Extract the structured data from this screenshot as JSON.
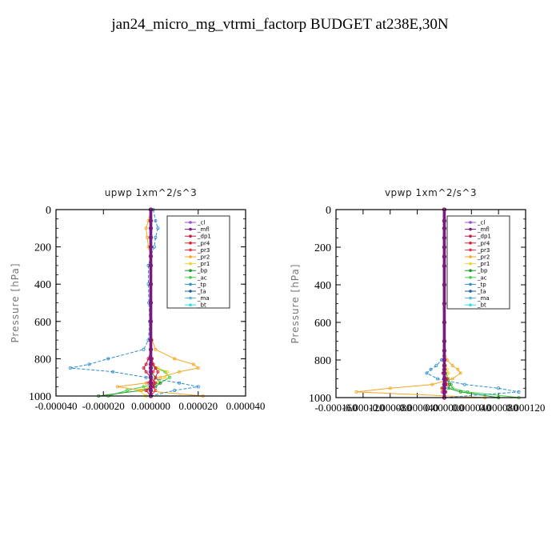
{
  "title": "jan24_micro_mg_vtrmi_factorp  BUDGET at238E,30N",
  "y_axis_label": "Pressure [hPa]",
  "legend_entries": [
    "_cl",
    "_mfl",
    "_dp1",
    "_pr4",
    "_pr3",
    "_pr2",
    "_pr1",
    "_bp",
    "_ac",
    "_tp",
    "_ta",
    "_ma",
    "_bt"
  ],
  "colors": {
    "_cl": "#a64ad6",
    "_mfl": "#7a1a7a",
    "_dp1": "#c8163c",
    "_pr4": "#d81e2e",
    "_pr3": "#ee3344",
    "_pr2": "#f5a623",
    "_pr1": "#f2d22e",
    "_bp": "#1a9a2a",
    "_ac": "#3ecf3e",
    "_tp": "#2a8fd0",
    "_ta": "#1a5aa8",
    "_ma": "#5ab5d8",
    "_bt": "#33dddd"
  },
  "chart_data": [
    {
      "type": "line",
      "title": "upwp   1xm^2/s^3",
      "ylabel": "Pressure [hPa]",
      "ylim": [
        1000,
        0
      ],
      "xlim": [
        -4e-05,
        4e-05
      ],
      "x_tick_labels": [
        "-0.000040",
        "-0.000020",
        "0.000000",
        "0.000020",
        "0.000040"
      ],
      "x_tick_values": [
        -4e-05,
        -2e-05,
        0,
        2e-05,
        4e-05
      ],
      "y_ticks": [
        0,
        200,
        400,
        600,
        800,
        1000
      ],
      "pressure_levels": [
        0,
        60,
        100,
        150,
        200,
        250,
        300,
        400,
        500,
        600,
        700,
        750,
        800,
        830,
        850,
        870,
        900,
        930,
        950,
        970,
        1000
      ],
      "series": [
        {
          "name": "_cl",
          "values": [
            0,
            0,
            0,
            0,
            0,
            0,
            0,
            0,
            0,
            0,
            0,
            0,
            0,
            0,
            0,
            0,
            0,
            0,
            0,
            0,
            0
          ]
        },
        {
          "name": "_mfl",
          "values": [
            0,
            0,
            0,
            0,
            0,
            0,
            0,
            0,
            0,
            0,
            0,
            0,
            0,
            0,
            0,
            0,
            0,
            0,
            0,
            0,
            0
          ]
        },
        {
          "name": "_dp1",
          "values": [
            0,
            0,
            0,
            0,
            0,
            0,
            0,
            0,
            0,
            0,
            0,
            2e-07,
            -1e-06,
            -2e-06,
            -3e-06,
            -2e-06,
            0,
            2e-06,
            1e-06,
            -2e-06,
            0
          ]
        },
        {
          "name": "_pr4",
          "values": [
            0,
            0,
            0,
            0,
            0,
            0,
            0,
            0,
            0,
            0,
            0,
            0,
            5e-07,
            1e-06,
            2e-06,
            3e-06,
            2e-06,
            1e-06,
            1e-06,
            0,
            0
          ]
        },
        {
          "name": "_pr3",
          "values": [
            0,
            0,
            0,
            0,
            0,
            0,
            0,
            0,
            0,
            0,
            0,
            0,
            5e-07,
            1e-06,
            2e-06,
            1e-06,
            0,
            -1e-06,
            1e-06,
            2e-06,
            0
          ]
        },
        {
          "name": "_pr2",
          "values": [
            0,
            -1e-06,
            -2e-06,
            -1.5e-06,
            -1e-06,
            0,
            0,
            0,
            0,
            0,
            5e-07,
            2e-06,
            1e-05,
            1.8e-05,
            2e-05,
            1.2e-05,
            4e-06,
            -2e-06,
            -1.4e-05,
            -4e-06,
            2.2e-05
          ]
        },
        {
          "name": "_pr1",
          "values": [
            0,
            0,
            0,
            0,
            0,
            0,
            0,
            0,
            0,
            0,
            0,
            0,
            0,
            0,
            3e-06,
            7e-06,
            6e-06,
            2e-06,
            0,
            -5e-06,
            -2e-06
          ]
        },
        {
          "name": "_bp",
          "values": [
            0,
            0,
            0,
            0,
            0,
            0,
            0,
            0,
            0,
            0,
            0,
            0,
            0,
            0,
            0,
            0,
            2e-06,
            4e-06,
            2e-06,
            -4e-06,
            -2.2e-05
          ]
        },
        {
          "name": "_ac",
          "values": [
            0,
            0,
            0,
            0,
            0,
            0,
            0,
            0,
            0,
            0,
            0,
            0,
            0,
            0,
            2e-06,
            6e-06,
            8e-06,
            4e-06,
            -3e-06,
            -1e-05,
            -1.8e-05
          ]
        },
        {
          "name": "_tp",
          "values": [
            1e-06,
            2e-06,
            3e-06,
            2e-06,
            1.5e-06,
            0,
            -1e-06,
            -1e-06,
            -8e-07,
            -5e-07,
            -1e-06,
            -3e-06,
            -1.8e-05,
            -2.6e-05,
            -3.4e-05,
            -1.6e-05,
            -2e-06,
            1.2e-05,
            2e-05,
            1e-05,
            0
          ]
        },
        {
          "name": "_ta",
          "values": [
            0,
            0,
            0,
            0,
            0,
            0,
            0,
            0,
            0,
            0,
            0,
            0,
            0,
            0,
            0,
            0,
            0,
            0,
            0,
            0,
            0
          ]
        },
        {
          "name": "_ma",
          "values": [
            0,
            0,
            0,
            0,
            0,
            0,
            0,
            0,
            0,
            0,
            0,
            0,
            0,
            0,
            0,
            0,
            0,
            0,
            0,
            0,
            0
          ]
        },
        {
          "name": "_bt",
          "values": [
            0,
            0,
            0,
            0,
            0,
            0,
            0,
            0,
            0,
            0,
            0,
            0,
            0,
            0,
            0,
            0,
            0,
            0,
            0,
            0,
            0
          ]
        }
      ]
    },
    {
      "type": "line",
      "title": "vpwp   1xm^2/s^3",
      "ylabel": "Pressure [hPa]",
      "ylim": [
        1000,
        0
      ],
      "xlim": [
        -0.00016,
        0.00012
      ],
      "x_tick_labels": [
        "-0.000160",
        "-0.000120",
        "-0.000080",
        "-0.000040",
        "0.000000",
        "0.000040",
        "0.000080",
        "0.000120"
      ],
      "x_tick_values": [
        -0.00016,
        -0.00012,
        -8e-05,
        -4e-05,
        0,
        4e-05,
        8e-05,
        0.00012
      ],
      "y_ticks": [
        0,
        200,
        400,
        600,
        800,
        1000
      ],
      "pressure_levels": [
        0,
        60,
        100,
        150,
        200,
        250,
        300,
        400,
        500,
        600,
        700,
        750,
        800,
        830,
        850,
        870,
        900,
        930,
        950,
        970,
        1000
      ],
      "series": [
        {
          "name": "_cl",
          "values": [
            0,
            0,
            0,
            0,
            0,
            0,
            0,
            0,
            0,
            0,
            0,
            0,
            0,
            0,
            0,
            0,
            0,
            0,
            0,
            0,
            0
          ]
        },
        {
          "name": "_mfl",
          "values": [
            0,
            0,
            0,
            0,
            0,
            0,
            0,
            0,
            0,
            0,
            0,
            0,
            0,
            0,
            0,
            0,
            0,
            0,
            0,
            0,
            0
          ]
        },
        {
          "name": "_dp1",
          "values": [
            0,
            0,
            0,
            0,
            0,
            0,
            0,
            0,
            0,
            0,
            0,
            0,
            0,
            0,
            0,
            -2e-06,
            4e-06,
            2e-06,
            -3e-06,
            2e-06,
            0
          ]
        },
        {
          "name": "_pr4",
          "values": [
            0,
            0,
            0,
            0,
            0,
            0,
            0,
            0,
            0,
            0,
            0,
            0,
            0,
            0,
            0,
            1e-06,
            2e-06,
            1e-06,
            0,
            0,
            0
          ]
        },
        {
          "name": "_pr3",
          "values": [
            0,
            0,
            0,
            0,
            0,
            0,
            0,
            0,
            0,
            0,
            0,
            0,
            0,
            0,
            0,
            0,
            2e-06,
            4e-06,
            0,
            -3e-06,
            0
          ]
        },
        {
          "name": "_pr2",
          "values": [
            0,
            0,
            0,
            0,
            0,
            0,
            0,
            0,
            0,
            0,
            0,
            0,
            4e-06,
            1.2e-05,
            2e-05,
            2.4e-05,
            1.2e-05,
            -1.8e-05,
            -8e-05,
            -0.00013,
            6e-05
          ]
        },
        {
          "name": "_pr1",
          "values": [
            0,
            0,
            0,
            0,
            0,
            0,
            0,
            0,
            0,
            0,
            0,
            0,
            0,
            2e-06,
            4e-06,
            6e-06,
            4e-06,
            0,
            -4e-06,
            0,
            0
          ]
        },
        {
          "name": "_bp",
          "values": [
            0,
            0,
            0,
            0,
            0,
            0,
            0,
            0,
            0,
            0,
            0,
            0,
            0,
            0,
            0,
            0,
            3e-06,
            8e-06,
            6e-06,
            2.4e-05,
            8e-05
          ]
        },
        {
          "name": "_ac",
          "values": [
            0,
            0,
            0,
            0,
            0,
            0,
            0,
            0,
            0,
            0,
            0,
            0,
            0,
            0,
            0,
            2e-06,
            6e-06,
            1e-05,
            1.2e-05,
            3.4e-05,
            0.00011
          ]
        },
        {
          "name": "_tp",
          "values": [
            0,
            0,
            0,
            0,
            0,
            0,
            0,
            0,
            0,
            0,
            0,
            0,
            -4e-06,
            -1.2e-05,
            -2e-05,
            -2.6e-05,
            -1e-05,
            3e-05,
            8e-05,
            0.00011,
            0
          ]
        },
        {
          "name": "_ta",
          "values": [
            0,
            0,
            0,
            0,
            0,
            0,
            0,
            0,
            0,
            0,
            0,
            0,
            0,
            0,
            0,
            0,
            0,
            0,
            0,
            0,
            0
          ]
        },
        {
          "name": "_ma",
          "values": [
            0,
            0,
            0,
            0,
            0,
            0,
            0,
            0,
            0,
            0,
            0,
            0,
            0,
            0,
            0,
            0,
            0,
            0,
            0,
            0,
            0
          ]
        },
        {
          "name": "_bt",
          "values": [
            0,
            0,
            0,
            0,
            0,
            0,
            0,
            0,
            0,
            0,
            0,
            0,
            0,
            0,
            0,
            0,
            0,
            0,
            0,
            0,
            0
          ]
        }
      ]
    }
  ]
}
